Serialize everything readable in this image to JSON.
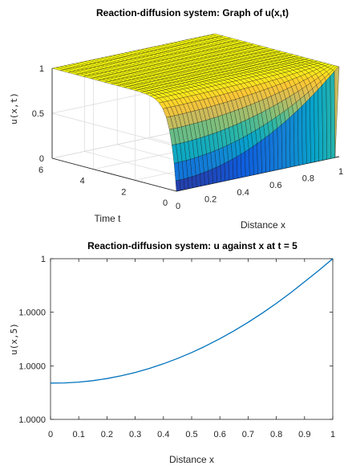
{
  "chart_data": [
    {
      "type": "surface",
      "title": "Reaction-diffusion system: Graph of u(x,t)",
      "xlabel": "Distance x",
      "ylabel": "Time t",
      "zlabel": "u(x,t)",
      "xlim": [
        0,
        1
      ],
      "ylim": [
        0,
        6
      ],
      "zlim": [
        0,
        1
      ],
      "x_ticks": [
        "0",
        "0.2",
        "0.4",
        "0.6",
        "0.8",
        "1"
      ],
      "y_ticks": [
        "0",
        "2",
        "4",
        "6"
      ],
      "z_ticks": [
        "0",
        "0.5",
        "1"
      ],
      "grid": true,
      "colormap": [
        "#352a87",
        "#0f5cdd",
        "#1481d6",
        "#06a4ca",
        "#2eb7a4",
        "#87bf77",
        "#d1bb59",
        "#fec832",
        "#f9fb0e"
      ],
      "grid_resolution": {
        "x_points": 41,
        "t_points": 25
      },
      "surface_description_values": {
        "initial_profile_t0": [
          0,
          0,
          0,
          0,
          0,
          0,
          0,
          0,
          0,
          0,
          0
        ],
        "x_samples": [
          0,
          0.1,
          0.2,
          0.3,
          0.4,
          0.5,
          0.6,
          0.7,
          0.8,
          0.9,
          1.0
        ],
        "boundary_x1": 1,
        "late_time_level": 1
      }
    },
    {
      "type": "line",
      "title": "Reaction-diffusion system: u against x at t = 5",
      "xlabel": "Distance x",
      "ylabel": "u(x,5)",
      "xlim": [
        0,
        1
      ],
      "x_ticks": [
        "0",
        "0.1",
        "0.2",
        "0.3",
        "0.4",
        "0.5",
        "0.6",
        "0.7",
        "0.8",
        "0.9",
        "1"
      ],
      "y_ticks": [
        "1",
        "1.0000",
        "1.0000",
        "1.0000"
      ],
      "y_tick_fraction_from_top": [
        0,
        0.333,
        0.667,
        1
      ],
      "line_color": "#0072bd",
      "series": [
        {
          "x": [
            0,
            0.05,
            0.1,
            0.15,
            0.2,
            0.25,
            0.3,
            0.35,
            0.4,
            0.45,
            0.5,
            0.55,
            0.6,
            0.65,
            0.7,
            0.75,
            0.8,
            0.85,
            0.9,
            0.95,
            1.0
          ],
          "y_fraction_of_range": [
            0.226,
            0.227,
            0.232,
            0.241,
            0.254,
            0.271,
            0.292,
            0.317,
            0.346,
            0.379,
            0.416,
            0.457,
            0.502,
            0.551,
            0.604,
            0.661,
            0.722,
            0.787,
            0.856,
            0.926,
            1.0
          ]
        }
      ]
    }
  ]
}
